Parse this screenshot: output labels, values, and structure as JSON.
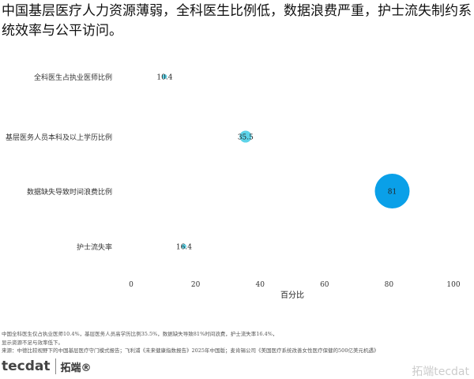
{
  "chart_data": {
    "type": "scatter",
    "title": "中国基层医疗人力资源薄弱，全科医生比例低，数据浪费严重，护士流失制约系统效率与公平访问。",
    "xlabel": "百分比",
    "ylabel": "",
    "xlim": [
      0,
      100
    ],
    "xticks": [
      "0",
      "20",
      "40",
      "60",
      "80",
      "100"
    ],
    "grid": false,
    "categories": [
      "全科医生占执业医师比例",
      "基层医务人员本科及以上学历比例",
      "数据缺失导致时间浪费比例",
      "护士流失率"
    ],
    "values": [
      10.4,
      35.5,
      81,
      16.4
    ],
    "labels": [
      "10.4",
      "35.5",
      "81",
      "16.4"
    ],
    "colors": [
      "#5dd3e8",
      "#5dd3e8",
      "#0aa0e8",
      "#5dd3e8"
    ]
  },
  "notes": [
    "中国全科医生仅占执业医师10.4%，基层医务人员高学历比例35.5%，数据缺失导致81%时间浪费，护士流失率16.4%，",
    "显示资源不足与效率低下。",
    "来源：中德比较视野下的中国基层医疗守门模式报告；飞利浦《未来健康指数报告》2025年中国版；麦肯锡公司《美国医疗系统改善女性医疗保健的500亿美元机遇》"
  ],
  "logo": {
    "brand": "tecdat",
    "cn": "拓端®"
  },
  "watermark": "拓端tecdat"
}
